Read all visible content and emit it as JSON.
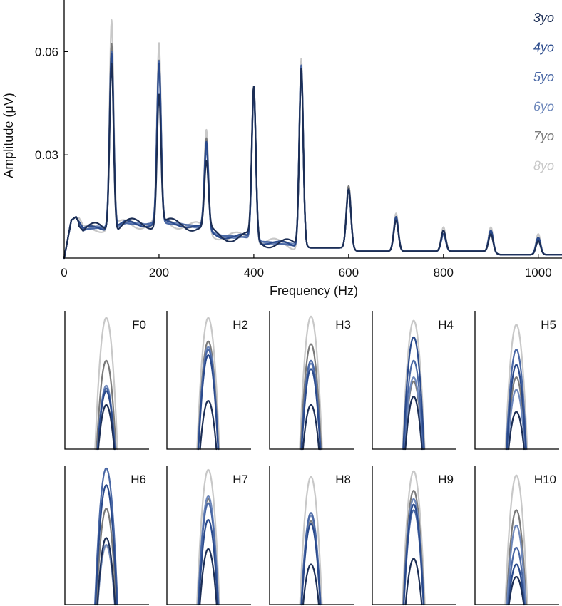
{
  "chart_data": [
    {
      "type": "line",
      "xlabel": "Frequency (Hz)",
      "ylabel": "Amplitude (μV)",
      "xlim": [
        0,
        1050
      ],
      "ylim": [
        0,
        0.075
      ],
      "x_ticks": [
        0,
        200,
        400,
        600,
        800,
        1000
      ],
      "x_tick_labels": [
        "0",
        "200",
        "400",
        "600",
        "800",
        "1000"
      ],
      "y_ticks": [
        0.03,
        0.06
      ],
      "y_tick_labels": [
        "0.03",
        "0.06"
      ],
      "grid": false,
      "legend_position": "top-right",
      "baseline": [
        [
          0,
          0.0
        ],
        [
          15,
          0.011
        ],
        [
          25,
          0.012
        ],
        [
          40,
          0.008
        ],
        [
          70,
          0.009
        ],
        [
          85,
          0.009
        ],
        [
          110,
          0.009
        ],
        [
          130,
          0.01
        ],
        [
          160,
          0.01
        ],
        [
          185,
          0.01
        ],
        [
          215,
          0.01
        ],
        [
          250,
          0.01
        ],
        [
          280,
          0.009
        ],
        [
          320,
          0.007
        ],
        [
          360,
          0.006
        ],
        [
          385,
          0.006
        ],
        [
          415,
          0.005
        ],
        [
          450,
          0.004
        ],
        [
          485,
          0.004
        ],
        [
          520,
          0.003
        ],
        [
          560,
          0.003
        ],
        [
          585,
          0.003
        ],
        [
          620,
          0.002
        ],
        [
          660,
          0.002
        ],
        [
          685,
          0.002
        ],
        [
          720,
          0.002
        ],
        [
          760,
          0.002
        ],
        [
          785,
          0.002
        ],
        [
          820,
          0.002
        ],
        [
          860,
          0.002
        ],
        [
          885,
          0.002
        ],
        [
          920,
          0.001
        ],
        [
          960,
          0.001
        ],
        [
          985,
          0.001
        ],
        [
          1020,
          0.001
        ],
        [
          1050,
          0.001
        ]
      ],
      "peak_frequencies": [
        100,
        200,
        300,
        400,
        500,
        600,
        700,
        800,
        900,
        1000
      ],
      "series": [
        {
          "name": "3yo",
          "color": "#1c2e55",
          "peaks": [
            0.058,
            0.048,
            0.027,
            0.049,
            0.055,
            0.02,
            0.011,
            0.008,
            0.007,
            0.005
          ]
        },
        {
          "name": "4yo",
          "color": "#2a4a8c",
          "peaks": [
            0.06,
            0.056,
            0.033,
            0.049,
            0.055,
            0.02,
            0.012,
            0.007,
            0.008,
            0.006
          ]
        },
        {
          "name": "5yo",
          "color": "#4a68a5",
          "peaks": [
            0.06,
            0.057,
            0.032,
            0.049,
            0.056,
            0.02,
            0.011,
            0.007,
            0.008,
            0.006
          ]
        },
        {
          "name": "6yo",
          "color": "#6e88bb",
          "peaks": [
            0.06,
            0.056,
            0.033,
            0.049,
            0.056,
            0.02,
            0.011,
            0.008,
            0.008,
            0.006
          ]
        },
        {
          "name": "7yo",
          "color": "#7a7a7a",
          "peaks": [
            0.063,
            0.057,
            0.034,
            0.05,
            0.056,
            0.021,
            0.012,
            0.008,
            0.008,
            0.006
          ]
        },
        {
          "name": "8yo",
          "color": "#c8c8c8",
          "peaks": [
            0.069,
            0.061,
            0.037,
            0.05,
            0.058,
            0.021,
            0.013,
            0.009,
            0.009,
            0.007
          ]
        }
      ]
    },
    {
      "type": "line",
      "panels": [
        {
          "label": "F0",
          "levels": {
            "3yo": 0.32,
            "4yo": 0.42,
            "5yo": 0.44,
            "6yo": 0.46,
            "7yo": 0.64,
            "8yo": 0.95
          }
        },
        {
          "label": "H2",
          "levels": {
            "3yo": 0.35,
            "4yo": 0.68,
            "5yo": 0.72,
            "6yo": 0.74,
            "7yo": 0.78,
            "8yo": 0.95
          }
        },
        {
          "label": "H3",
          "levels": {
            "3yo": 0.32,
            "4yo": 0.58,
            "5yo": 0.64,
            "6yo": 0.62,
            "7yo": 0.76,
            "8yo": 0.96
          }
        },
        {
          "label": "H4",
          "levels": {
            "3yo": 0.38,
            "4yo": 0.81,
            "5yo": 0.64,
            "6yo": 0.52,
            "7yo": 0.49,
            "8yo": 0.93
          }
        },
        {
          "label": "H5",
          "levels": {
            "3yo": 0.27,
            "4yo": 0.61,
            "5yo": 0.72,
            "6yo": 0.43,
            "7yo": 0.52,
            "8yo": 0.9
          }
        },
        {
          "label": "H6",
          "levels": {
            "3yo": 0.48,
            "4yo": 0.86,
            "5yo": 0.98,
            "6yo": 0.43,
            "7yo": 0.69,
            "8yo": 0.42
          }
        },
        {
          "label": "H7",
          "levels": {
            "3yo": 0.4,
            "4yo": 0.61,
            "5yo": 0.73,
            "6yo": 0.78,
            "7yo": 0.76,
            "8yo": 0.97
          }
        },
        {
          "label": "H8",
          "levels": {
            "3yo": 0.29,
            "4yo": 0.58,
            "5yo": 0.66,
            "6yo": 0.64,
            "7yo": 0.6,
            "8yo": 0.92
          }
        },
        {
          "label": "H9",
          "levels": {
            "3yo": 0.33,
            "4yo": 0.72,
            "5yo": 0.68,
            "6yo": 0.76,
            "7yo": 0.82,
            "8yo": 0.96
          }
        },
        {
          "label": "H10",
          "levels": {
            "3yo": 0.2,
            "4yo": 0.29,
            "5yo": 0.41,
            "6yo": 0.57,
            "7yo": 0.68,
            "8yo": 0.93
          }
        }
      ]
    }
  ]
}
